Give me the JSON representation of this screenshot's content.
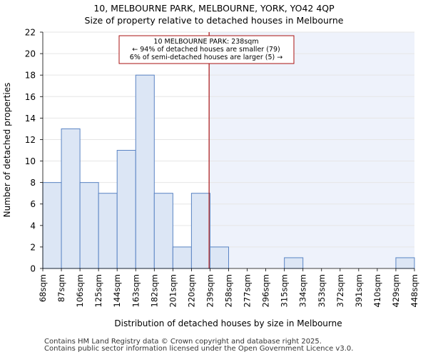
{
  "chart_data": {
    "type": "bar",
    "title_line1": "10, MELBOURNE PARK, MELBOURNE, YORK, YO42 4QP",
    "title_line2": "Size of property relative to detached houses in Melbourne",
    "xlabel": "Distribution of detached houses by size in Melbourne",
    "ylabel": "Number of detached properties",
    "ylim": [
      0,
      22
    ],
    "yticks": [
      0,
      2,
      4,
      6,
      8,
      10,
      12,
      14,
      16,
      18,
      20,
      22
    ],
    "bin_edges": [
      "68sqm",
      "87sqm",
      "106sqm",
      "125sqm",
      "144sqm",
      "163sqm",
      "182sqm",
      "201sqm",
      "220sqm",
      "239sqm",
      "258sqm",
      "277sqm",
      "296sqm",
      "315sqm",
      "334sqm",
      "353sqm",
      "372sqm",
      "391sqm",
      "410sqm",
      "429sqm",
      "448sqm"
    ],
    "values": [
      8,
      13,
      8,
      7,
      11,
      18,
      7,
      2,
      7,
      2,
      0,
      0,
      0,
      1,
      0,
      0,
      0,
      0,
      0,
      1
    ],
    "marker_position_bins": 8.95,
    "annotation": {
      "line1": "10 MELBOURNE PARK: 238sqm",
      "line2": "← 94% of detached houses are smaller (79)",
      "line3": "6% of semi-detached houses are larger (5) →"
    },
    "colors": {
      "bar_fill": "#dce6f5",
      "bar_stroke": "#5a84c4",
      "shade": "#eef2fb",
      "marker": "#aa1111",
      "grid": "#e6e6e6"
    }
  },
  "footer": {
    "line1": "Contains HM Land Registry data © Crown copyright and database right 2025.",
    "line2": "Contains public sector information licensed under the Open Government Licence v3.0."
  }
}
